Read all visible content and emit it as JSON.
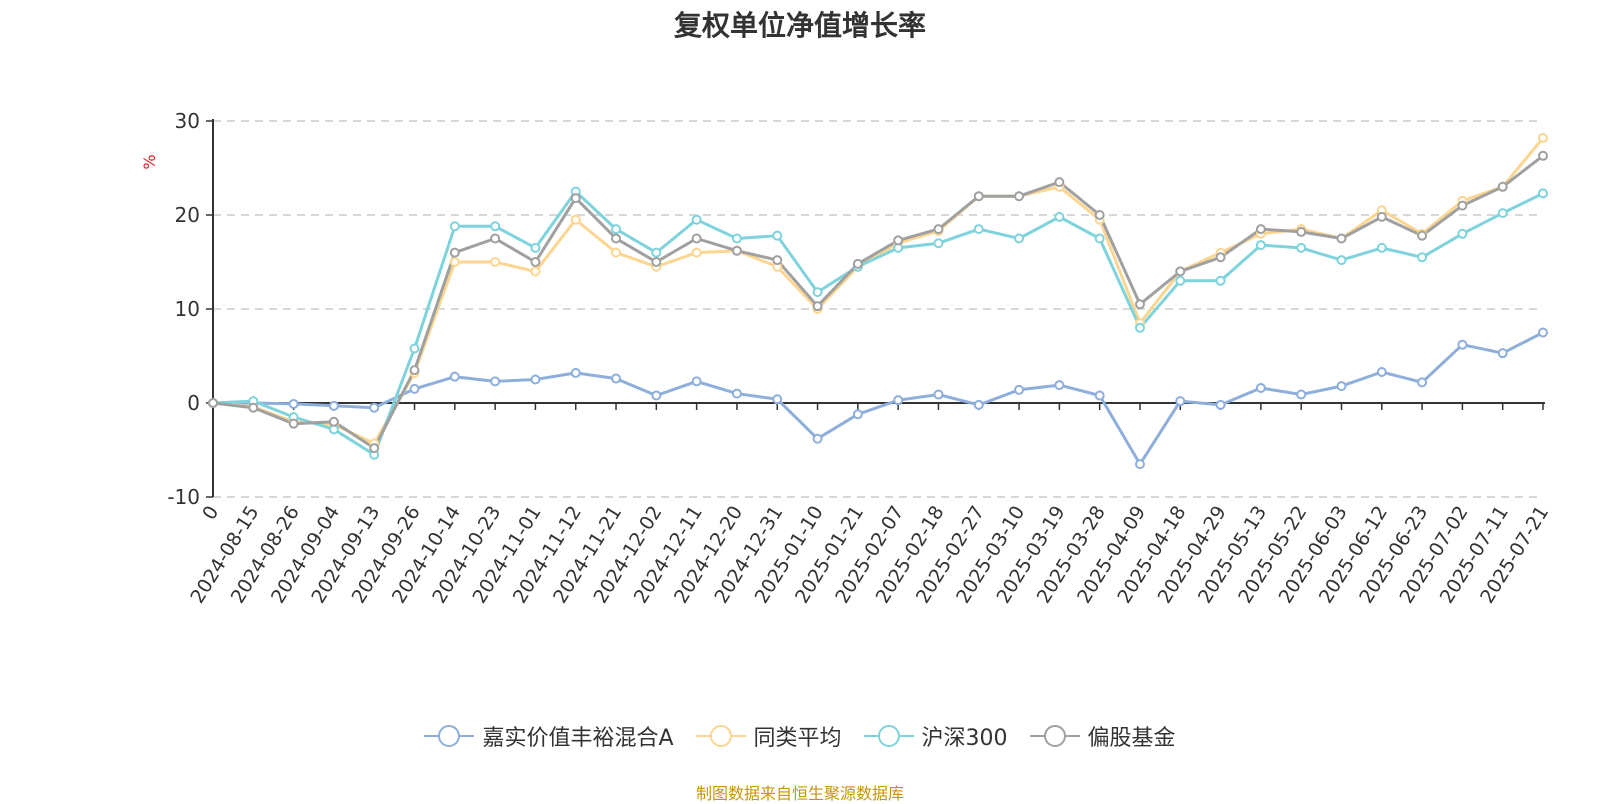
{
  "chart_data": {
    "type": "line",
    "title": "复权单位净值增长率",
    "ylabel": "%",
    "ylim": [
      -10,
      30
    ],
    "yticks": [
      -10,
      0,
      10,
      20,
      30
    ],
    "x_ticks": [
      "0",
      "2024-08-15",
      "2024-08-26",
      "2024-09-04",
      "2024-09-13",
      "2024-09-26",
      "2024-10-14",
      "2024-10-23",
      "2024-11-01",
      "2024-11-12",
      "2024-11-21",
      "2024-12-02",
      "2024-12-11",
      "2024-12-20",
      "2024-12-31",
      "2025-01-10",
      "2025-01-21",
      "2025-02-07",
      "2025-02-18",
      "2025-02-27",
      "2025-03-10",
      "2025-03-19",
      "2025-03-28",
      "2025-04-09",
      "2025-04-18",
      "2025-04-29",
      "2025-05-13",
      "2025-05-22",
      "2025-06-03",
      "2025-06-12",
      "2025-06-23",
      "2025-07-02",
      "2025-07-11",
      "2025-07-21"
    ],
    "grid": "horizontal dashed",
    "legend_position": "bottom",
    "series": [
      {
        "name": "嘉实价值丰裕混合A",
        "color": "#8eaedb",
        "values": [
          0,
          0,
          -0.1,
          -0.3,
          -0.5,
          1.5,
          2.8,
          2.3,
          2.5,
          3.2,
          2.6,
          0.8,
          2.3,
          1.0,
          0.4,
          -3.8,
          -1.2,
          0.3,
          0.9,
          -0.2,
          1.4,
          1.9,
          0.8,
          -6.5,
          0.2,
          -0.2,
          1.6,
          0.9,
          1.8,
          3.3,
          2.2,
          6.2,
          5.3,
          7.5
        ]
      },
      {
        "name": "同类平均",
        "color": "#fcd690",
        "values": [
          0,
          -0.4,
          -2.0,
          -2.3,
          -4.3,
          3.2,
          15.0,
          15.0,
          14.0,
          19.5,
          16.0,
          14.5,
          16.0,
          16.2,
          14.5,
          10.0,
          14.5,
          17.0,
          18.3,
          22.0,
          22.0,
          23.0,
          19.5,
          8.5,
          14.0,
          16.0,
          18.0,
          18.5,
          17.5,
          20.5,
          18.0,
          21.5,
          23.0,
          28.2
        ]
      },
      {
        "name": "沪深300",
        "color": "#7ed3dc",
        "values": [
          0,
          0.2,
          -1.5,
          -2.8,
          -5.5,
          5.8,
          18.8,
          18.8,
          16.5,
          22.5,
          18.5,
          16.0,
          19.5,
          17.5,
          17.8,
          11.8,
          14.5,
          16.5,
          17.0,
          18.5,
          17.5,
          19.8,
          17.5,
          8.0,
          13.0,
          13.0,
          16.8,
          16.5,
          15.2,
          16.5,
          15.5,
          18.0,
          20.2,
          22.3
        ]
      },
      {
        "name": "偏股基金",
        "color": "#a0a0a0",
        "values": [
          0,
          -0.5,
          -2.2,
          -2.0,
          -4.8,
          3.5,
          16.0,
          17.5,
          15.0,
          21.8,
          17.5,
          15.0,
          17.5,
          16.2,
          15.2,
          10.3,
          14.8,
          17.3,
          18.5,
          22.0,
          22.0,
          23.5,
          20.0,
          10.5,
          14.0,
          15.5,
          18.5,
          18.2,
          17.5,
          19.8,
          17.8,
          21.0,
          23.0,
          26.3
        ]
      }
    ]
  },
  "legend": {
    "items": [
      "嘉实价值丰裕混合A",
      "同类平均",
      "沪深300",
      "偏股基金"
    ]
  },
  "source_text": "制图数据来自恒生聚源数据库"
}
